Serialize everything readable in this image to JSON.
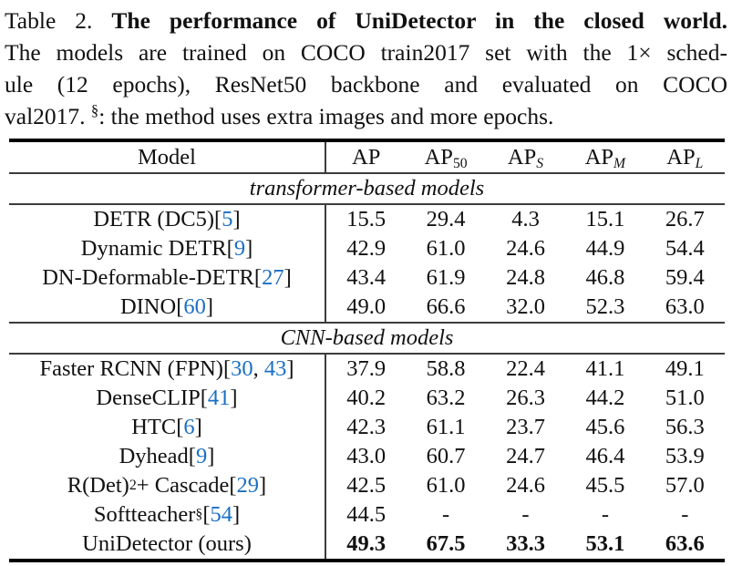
{
  "accent_colors": {
    "citation_blue": "#1a6fc4",
    "text": "#111111"
  },
  "caption": {
    "line1_label": "Table 2.",
    "line1_title": "The performance of UniDetector in the closed world.",
    "line2": "The models are trained on COCO train2017 set with the 1× sched-",
    "line3": "ule (12 epochs), ResNet50 backbone and evaluated on COCO",
    "line4_pre": "val2017. ",
    "footnote_symbol": "§",
    "line4_post": ": the method uses extra images and more epochs."
  },
  "table": {
    "header": {
      "model": "Model",
      "metrics": [
        {
          "base": "AP",
          "sub": ""
        },
        {
          "base": "AP",
          "sub": "50"
        },
        {
          "base": "AP",
          "sub": "S"
        },
        {
          "base": "AP",
          "sub": "M"
        },
        {
          "base": "AP",
          "sub": "L"
        }
      ]
    },
    "sections": [
      {
        "label": "transformer-based models",
        "rows": [
          {
            "model_pre": "DETR (DC5) ",
            "cites": [
              "5"
            ],
            "values": [
              "15.5",
              "29.4",
              "4.3",
              "15.1",
              "26.7"
            ]
          },
          {
            "model_pre": "Dynamic DETR ",
            "cites": [
              "9"
            ],
            "values": [
              "42.9",
              "61.0",
              "24.6",
              "44.9",
              "54.4"
            ]
          },
          {
            "model_pre": "DN-Deformable-DETR ",
            "cites": [
              "27"
            ],
            "values": [
              "43.4",
              "61.9",
              "24.8",
              "46.8",
              "59.4"
            ]
          },
          {
            "model_pre": "DINO ",
            "cites": [
              "60"
            ],
            "values": [
              "49.0",
              "66.6",
              "32.0",
              "52.3",
              "63.0"
            ]
          }
        ]
      },
      {
        "label": "CNN-based models",
        "rows": [
          {
            "model_pre": "Faster RCNN (FPN) ",
            "cites": [
              "30",
              "43"
            ],
            "values": [
              "37.9",
              "58.8",
              "22.4",
              "41.1",
              "49.1"
            ]
          },
          {
            "model_pre": "DenseCLIP ",
            "cites": [
              "41"
            ],
            "values": [
              "40.2",
              "63.2",
              "26.3",
              "44.2",
              "51.0"
            ]
          },
          {
            "model_pre": "HTC ",
            "cites": [
              "6"
            ],
            "values": [
              "42.3",
              "61.1",
              "23.7",
              "45.6",
              "56.3"
            ]
          },
          {
            "model_pre": "Dyhead ",
            "cites": [
              "9"
            ],
            "values": [
              "43.0",
              "60.7",
              "24.7",
              "46.4",
              "53.9"
            ]
          },
          {
            "model_pre": "R(Det)",
            "model_sup": "2",
            "model_mid": " + Cascade ",
            "cites": [
              "29"
            ],
            "values": [
              "42.5",
              "61.0",
              "24.6",
              "45.5",
              "57.0"
            ]
          },
          {
            "model_pre": "Softteacher ",
            "model_sup": "§",
            "model_mid": " ",
            "cites": [
              "54"
            ],
            "values": [
              "44.5",
              "-",
              "-",
              "-",
              "-"
            ]
          },
          {
            "model_pre": "UniDetector (ours)",
            "cites": [],
            "bold_values": true,
            "values": [
              "49.3",
              "67.5",
              "33.3",
              "53.1",
              "63.6"
            ]
          }
        ]
      }
    ]
  }
}
